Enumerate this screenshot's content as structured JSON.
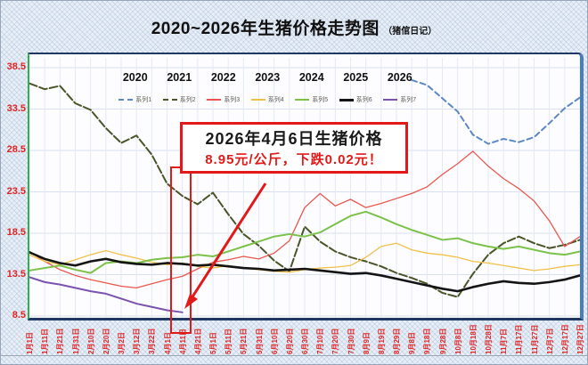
{
  "title": {
    "main": "2020~2026年生猪价格走势图",
    "suffix": "（猪倌日记）"
  },
  "annotation": {
    "line1": "2026年4月6日生猪价格",
    "line2": "8.95元/公斤，下跌0.02元！",
    "highlight_tick": "4月11日"
  },
  "colors": {
    "axis_label_red": "#e02424",
    "annotation_red": "#e11919",
    "plot_border_blue": "#4a7ebb",
    "plot_border_green": "#2eb050",
    "plot_border_navy": "#1f3864"
  },
  "chart_data": {
    "type": "line",
    "title": "2020~2026年生猪价格走势图（猪倌日记）",
    "ylim": [
      8.5,
      38.5
    ],
    "yticks": [
      38.5,
      33.5,
      28.5,
      23.5,
      18.5,
      13.5,
      8.5
    ],
    "grid": true,
    "legend_position": "top",
    "legend_years": [
      "2020",
      "2021",
      "2022",
      "2023",
      "2024",
      "2025",
      "2026"
    ],
    "x_labels": [
      "1月1日",
      "1月11日",
      "1月21日",
      "1月31日",
      "2月10日",
      "2月20日",
      "3月2日",
      "3月12日",
      "3月22日",
      "4月1日",
      "4月11日",
      "4月21日",
      "5月1日",
      "5月11日",
      "5月21日",
      "5月31日",
      "6月10日",
      "6月20日",
      "6月30日",
      "7月10日",
      "7月20日",
      "7月30日",
      "8月9日",
      "8月19日",
      "8月29日",
      "9月8日",
      "9月18日",
      "9月28日",
      "10月8日",
      "10月18日",
      "10月28日",
      "11月7日",
      "11月17日",
      "11月27日",
      "12月7日",
      "12月17日",
      "12月27日"
    ],
    "series": [
      {
        "name": "系列1",
        "year": "2020",
        "color": "#5b87c5",
        "dash": "6 4",
        "width": 2,
        "values": [
          null,
          null,
          null,
          null,
          null,
          null,
          null,
          null,
          null,
          null,
          null,
          null,
          null,
          null,
          null,
          null,
          null,
          null,
          null,
          null,
          null,
          null,
          null,
          null,
          null,
          37.0,
          36.4,
          34.8,
          33.2,
          30.4,
          29.3,
          29.9,
          29.5,
          30.1,
          31.8,
          33.6,
          34.9
        ]
      },
      {
        "name": "系列2",
        "year": "2021",
        "color": "#4a5527",
        "dash": "9 3",
        "width": 2,
        "values": [
          36.6,
          35.9,
          36.3,
          34.2,
          33.4,
          31.2,
          29.4,
          30.3,
          28.0,
          24.5,
          23.0,
          22.0,
          23.4,
          20.8,
          18.4,
          17.0,
          15.2,
          13.9,
          19.3,
          17.5,
          16.3,
          15.6,
          15.1,
          14.5,
          13.7,
          13.1,
          12.4,
          11.3,
          10.8,
          13.6,
          15.9,
          17.3,
          18.1,
          17.3,
          16.7,
          17.1,
          17.7
        ]
      },
      {
        "name": "系列3",
        "year": "2022",
        "color": "#e8584f",
        "dash": "",
        "width": 1.3,
        "values": [
          16.3,
          15.1,
          14.1,
          13.4,
          12.9,
          12.5,
          12.1,
          11.9,
          12.4,
          12.9,
          13.3,
          14.2,
          15.0,
          15.3,
          15.7,
          15.4,
          16.1,
          17.6,
          21.6,
          23.3,
          21.8,
          22.6,
          21.6,
          22.1,
          22.7,
          23.3,
          24.1,
          25.6,
          26.9,
          28.4,
          26.6,
          25.1,
          23.9,
          22.4,
          20.0,
          16.9,
          18.1
        ]
      },
      {
        "name": "系列4",
        "year": "2023",
        "color": "#f0c04a",
        "dash": "",
        "width": 1.3,
        "values": [
          15.9,
          15.1,
          14.7,
          15.3,
          15.9,
          16.4,
          15.9,
          15.5,
          15.0,
          14.7,
          14.9,
          14.5,
          14.3,
          14.6,
          14.3,
          14.1,
          13.9,
          13.8,
          14.1,
          14.3,
          14.4,
          14.6,
          15.6,
          16.9,
          17.3,
          16.5,
          16.1,
          15.9,
          15.6,
          15.1,
          14.9,
          14.6,
          14.3,
          14.0,
          14.2,
          14.5,
          14.7
        ]
      },
      {
        "name": "系列5",
        "year": "2024",
        "color": "#7cc24a",
        "dash": "",
        "width": 2,
        "values": [
          14.0,
          14.3,
          14.6,
          14.1,
          13.7,
          14.9,
          15.1,
          14.9,
          15.3,
          15.5,
          15.6,
          15.9,
          15.7,
          16.3,
          16.9,
          17.5,
          18.1,
          18.4,
          18.1,
          18.6,
          19.6,
          20.6,
          21.1,
          20.4,
          19.6,
          18.9,
          18.3,
          17.7,
          17.9,
          17.3,
          16.9,
          16.6,
          16.9,
          16.5,
          16.1,
          15.9,
          16.3
        ]
      },
      {
        "name": "系列6",
        "year": "2025",
        "color": "#141414",
        "dash": "",
        "width": 2.6,
        "values": [
          16.2,
          15.4,
          14.9,
          14.6,
          15.1,
          15.4,
          15.0,
          14.8,
          14.7,
          14.9,
          14.8,
          14.6,
          14.7,
          14.5,
          14.3,
          14.2,
          14.0,
          14.1,
          14.2,
          14.0,
          13.8,
          13.6,
          13.7,
          13.4,
          13.0,
          12.6,
          12.2,
          11.8,
          11.5,
          12.0,
          12.4,
          12.7,
          12.5,
          12.4,
          12.6,
          12.9,
          13.4
        ]
      },
      {
        "name": "系列7",
        "year": "2026",
        "color": "#7b52ae",
        "dash": "",
        "width": 2,
        "values": [
          13.2,
          12.6,
          12.3,
          11.9,
          11.5,
          11.2,
          10.6,
          10.0,
          9.6,
          9.2,
          8.95,
          null,
          null,
          null,
          null,
          null,
          null,
          null,
          null,
          null,
          null,
          null,
          null,
          null,
          null,
          null,
          null,
          null,
          null,
          null,
          null,
          null,
          null,
          null,
          null,
          null,
          null
        ]
      }
    ]
  }
}
